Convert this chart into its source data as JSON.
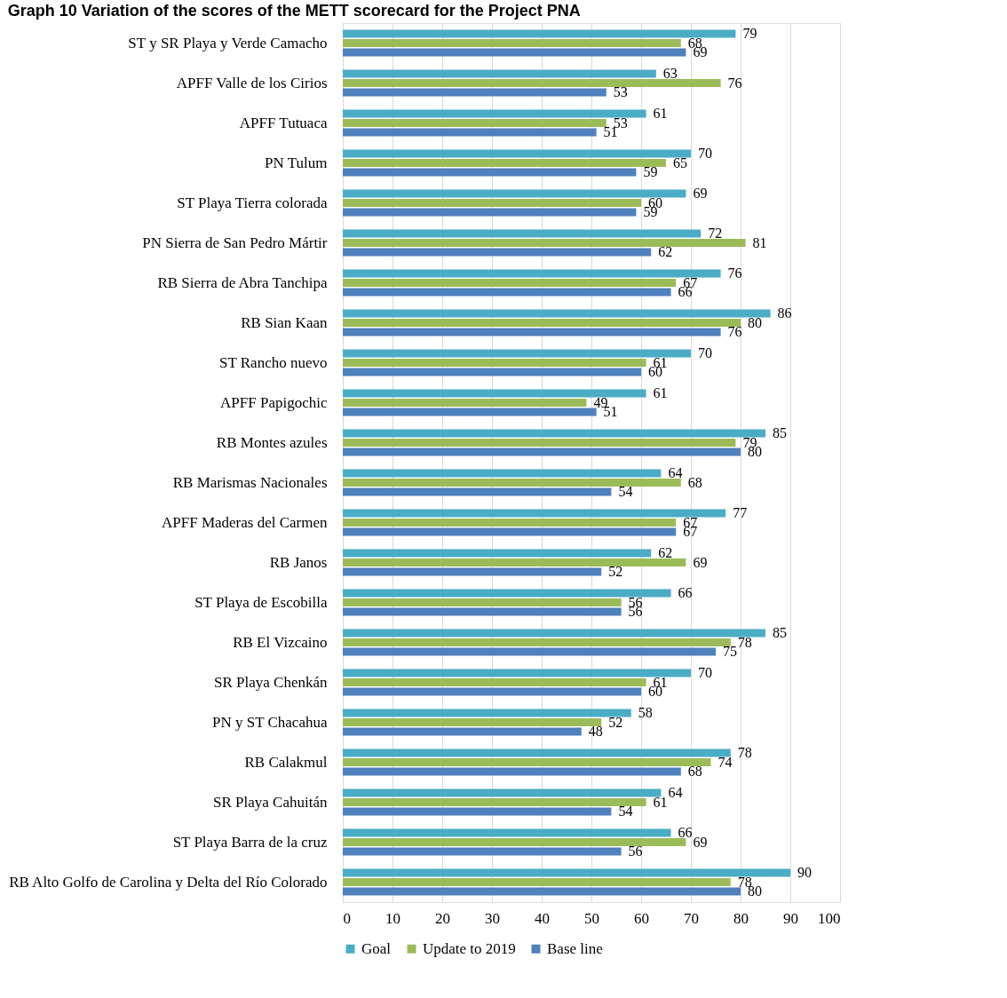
{
  "chart_data": {
    "type": "bar",
    "orientation": "horizontal",
    "title": "Graph 10 Variation of the scores of the METT scorecard for the Project PNA",
    "categories": [
      "ST y SR Playa y Verde Camacho",
      "APFF Valle de los Cirios",
      "APFF Tutuaca",
      "PN Tulum",
      "ST Playa Tierra colorada",
      "PN Sierra de San Pedro Mártir",
      "RB Sierra de Abra Tanchipa",
      "RB Sian Kaan",
      "ST Rancho nuevo",
      "APFF Papigochic",
      "RB Montes azules",
      "RB Marismas Nacionales",
      "APFF Maderas del Carmen",
      "RB Janos",
      "ST Playa de Escobilla",
      "RB El Vizcaino",
      "SR Playa Chenkán",
      "PN y ST Chacahua",
      "RB Calakmul",
      "SR Playa Cahuitán",
      "ST Playa Barra de la cruz",
      "RB Alto Golfo de Carolina y Delta del Río Colorado"
    ],
    "series": [
      {
        "name": "Goal",
        "color": "#4bacc6",
        "values": [
          79,
          63,
          61,
          70,
          69,
          72,
          76,
          86,
          70,
          61,
          85,
          64,
          77,
          62,
          66,
          85,
          70,
          58,
          78,
          64,
          66,
          90
        ]
      },
      {
        "name": "Update to 2019",
        "color": "#9bbb59",
        "values": [
          68,
          76,
          53,
          65,
          60,
          81,
          67,
          80,
          61,
          49,
          79,
          68,
          67,
          69,
          56,
          78,
          61,
          52,
          74,
          61,
          69,
          78
        ]
      },
      {
        "name": "Base line",
        "color": "#4f81bd",
        "values": [
          69,
          53,
          51,
          59,
          59,
          62,
          66,
          76,
          60,
          51,
          80,
          54,
          67,
          52,
          56,
          75,
          60,
          48,
          68,
          54,
          56,
          80
        ]
      }
    ],
    "xlim": [
      0,
      100
    ],
    "xticks": [
      0,
      10,
      20,
      30,
      40,
      50,
      60,
      70,
      80,
      90,
      100
    ],
    "grid": "x",
    "legend": "bottom",
    "data_labels": true
  }
}
